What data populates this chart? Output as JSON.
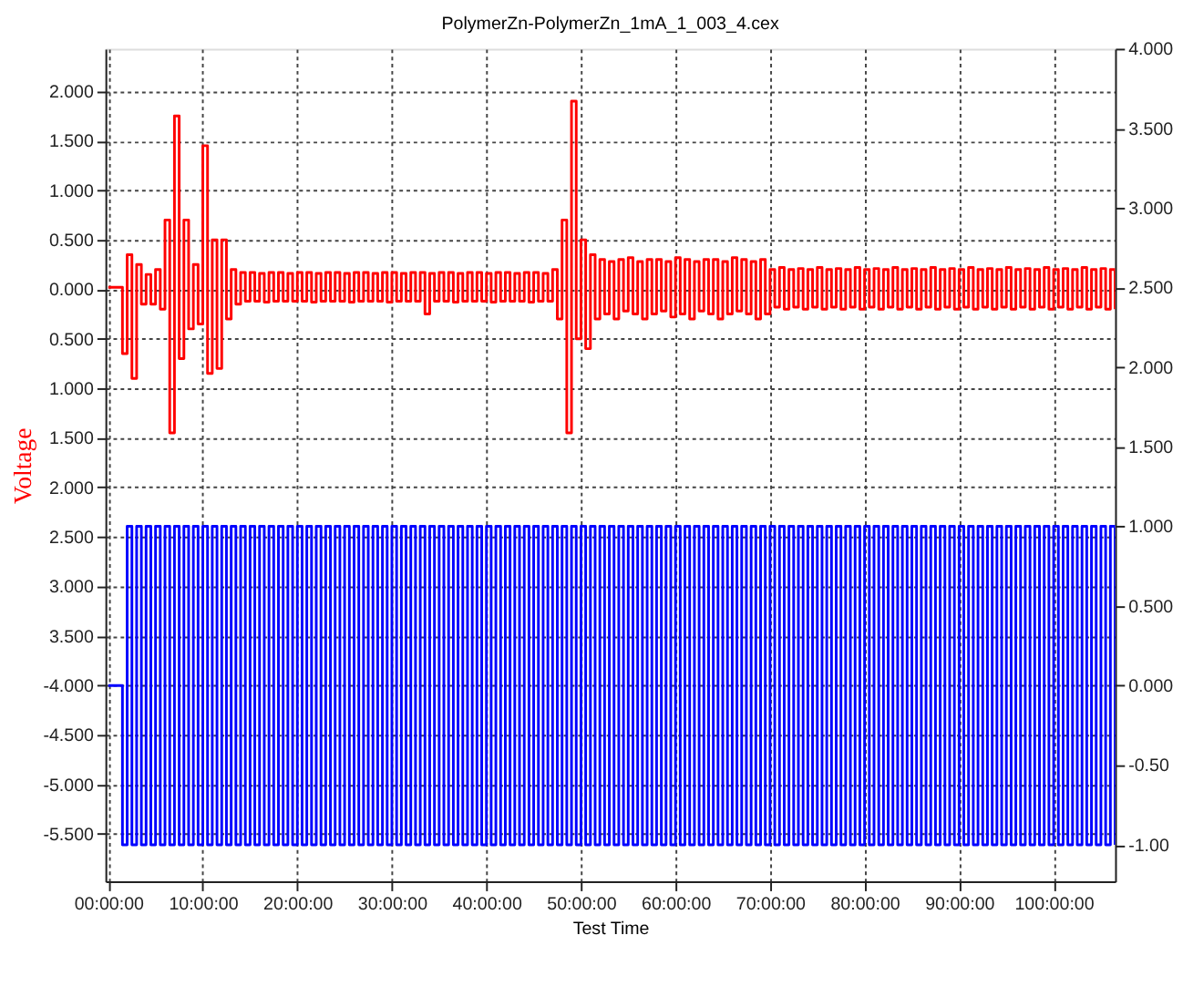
{
  "chart_data": {
    "type": "step",
    "title": "PolymerZn-PolymerZn_1mA_1_003_4.cex",
    "xlabel": "Test Time",
    "ylabel": "Voltage",
    "xlim": [
      -0.3,
      106.5
    ],
    "ylim": [
      -5.98,
      2.43
    ],
    "y2lim": [
      -1.23,
      4.0
    ],
    "xticks": [
      {
        "value": 0,
        "label": "00:00:00"
      },
      {
        "value": 10,
        "label": "10:00:00"
      },
      {
        "value": 20,
        "label": "20:00:00"
      },
      {
        "value": 30,
        "label": "30:00:00"
      },
      {
        "value": 40,
        "label": "40:00:00"
      },
      {
        "value": 50,
        "label": "50:00:00"
      },
      {
        "value": 60,
        "label": "60:00:00"
      },
      {
        "value": 70,
        "label": "70:00:00"
      },
      {
        "value": 80,
        "label": "80:00:00"
      },
      {
        "value": 90,
        "label": "90:00:00"
      },
      {
        "value": 100,
        "label": "100:00:00"
      }
    ],
    "yticks": [
      {
        "value": 2,
        "label": "2.000"
      },
      {
        "value": 1.5,
        "label": "1.500"
      },
      {
        "value": 1,
        "label": "1.000"
      },
      {
        "value": 0.5,
        "label": "0.500"
      },
      {
        "value": 0,
        "label": "0.000"
      },
      {
        "value": -0.5,
        "label": "0.500"
      },
      {
        "value": -1,
        "label": "1.000"
      },
      {
        "value": -1.5,
        "label": "1.500"
      },
      {
        "value": -2,
        "label": "2.000"
      },
      {
        "value": -2.5,
        "label": "2.500"
      },
      {
        "value": -3,
        "label": "3.000"
      },
      {
        "value": -3.5,
        "label": "3.500"
      },
      {
        "value": -4,
        "label": "-4.000"
      },
      {
        "value": -4.5,
        "label": "-4.500"
      },
      {
        "value": -5,
        "label": "-5.000"
      },
      {
        "value": -5.5,
        "label": "-5.500"
      }
    ],
    "y2ticks": [
      {
        "value": 4,
        "label": "4.000"
      },
      {
        "value": 3.5,
        "label": "3.500"
      },
      {
        "value": 3,
        "label": "3.000"
      },
      {
        "value": 2.5,
        "label": "2.500"
      },
      {
        "value": 2,
        "label": "2.000"
      },
      {
        "value": 1.5,
        "label": "1.500"
      },
      {
        "value": 1,
        "label": "1.000"
      },
      {
        "value": 0.5,
        "label": "0.500"
      },
      {
        "value": 0,
        "label": "0.000"
      },
      {
        "value": -0.5,
        "label": "-0.50"
      },
      {
        "value": -1,
        "label": "-1.00"
      }
    ],
    "grid": true,
    "x": [
      0,
      1.5,
      2,
      2.5,
      3,
      3.5,
      4,
      4.5,
      5,
      5.5,
      6,
      6.5,
      7,
      7.5,
      8,
      8.5,
      9,
      9.5,
      10,
      10.5,
      11,
      11.5,
      12,
      12.5,
      13,
      13.5,
      14,
      14.5,
      15,
      15.5,
      16,
      16.5,
      17,
      17.5,
      18,
      18.5,
      19,
      19.5,
      20,
      20.5,
      21,
      21.5,
      22,
      22.5,
      23,
      23.5,
      24,
      24.5,
      25,
      25.5,
      26,
      26.5,
      27,
      27.5,
      28,
      28.5,
      29,
      29.5,
      30,
      30.5,
      31,
      31.5,
      32,
      32.5,
      33,
      33.5,
      34,
      34.5,
      35,
      35.5,
      36,
      36.5,
      37,
      37.5,
      38,
      38.5,
      39,
      39.5,
      40,
      40.5,
      41,
      41.5,
      42,
      42.5,
      43,
      43.5,
      44,
      44.5,
      45,
      45.5,
      46,
      46.5,
      47,
      47.5,
      48,
      48.5,
      49,
      49.5,
      50,
      50.5,
      51,
      51.5,
      52,
      52.5,
      53,
      53.5,
      54,
      54.5,
      55,
      55.5,
      56,
      56.5,
      57,
      57.5,
      58,
      58.5,
      59,
      59.5,
      60,
      60.5,
      61,
      61.5,
      62,
      62.5,
      63,
      63.5,
      64,
      64.5,
      65,
      65.5,
      66,
      66.5,
      67,
      67.5,
      68,
      68.5,
      69,
      69.5,
      70,
      70.5,
      71,
      71.5,
      72,
      72.5,
      73,
      73.5,
      74,
      74.5,
      75,
      75.5,
      76,
      76.5,
      77,
      77.5,
      78,
      78.5,
      79,
      79.5,
      80,
      80.5,
      81,
      81.5,
      82,
      82.5,
      83,
      83.5,
      84,
      84.5,
      85,
      85.5,
      86,
      86.5,
      87,
      87.5,
      88,
      88.5,
      89,
      89.5,
      90,
      90.5,
      91,
      91.5,
      92,
      92.5,
      93,
      93.5,
      94,
      94.5,
      95,
      95.5,
      96,
      96.5,
      97,
      97.5,
      98,
      98.5,
      99,
      99.5,
      100,
      100.5,
      101,
      101.5,
      102,
      102.5,
      103,
      103.5,
      104,
      104.5,
      105,
      105.5,
      106,
      106.5
    ],
    "series": [
      {
        "color": "#ff0000",
        "values": [
          0.02,
          -0.65,
          0.35,
          -0.9,
          0.25,
          -0.15,
          0.15,
          -0.15,
          0.2,
          -0.2,
          0.7,
          -1.45,
          1.75,
          -0.7,
          0.7,
          -0.4,
          0.25,
          -0.35,
          1.45,
          -0.85,
          0.5,
          -0.8,
          0.5,
          -0.3,
          0.2,
          -0.15,
          0.17,
          -0.12,
          0.17,
          -0.12,
          0.16,
          -0.13,
          0.17,
          -0.12,
          0.17,
          -0.12,
          0.16,
          -0.12,
          0.17,
          -0.12,
          0.17,
          -0.13,
          0.16,
          -0.12,
          0.17,
          -0.12,
          0.17,
          -0.12,
          0.16,
          -0.13,
          0.17,
          -0.12,
          0.17,
          -0.12,
          0.16,
          -0.12,
          0.17,
          -0.13,
          0.17,
          -0.12,
          0.16,
          -0.12,
          0.17,
          -0.12,
          0.17,
          -0.25,
          0.16,
          -0.12,
          0.17,
          -0.12,
          0.17,
          -0.13,
          0.16,
          -0.12,
          0.17,
          -0.12,
          0.17,
          -0.12,
          0.16,
          -0.13,
          0.17,
          -0.12,
          0.17,
          -0.12,
          0.16,
          -0.12,
          0.17,
          -0.13,
          0.17,
          -0.12,
          0.16,
          -0.12,
          0.2,
          -0.3,
          0.7,
          -1.45,
          1.9,
          -0.5,
          0.5,
          -0.6,
          0.35,
          -0.3,
          0.3,
          -0.25,
          0.28,
          -0.3,
          0.3,
          -0.22,
          0.32,
          -0.25,
          0.28,
          -0.3,
          0.3,
          -0.25,
          0.3,
          -0.22,
          0.28,
          -0.28,
          0.32,
          -0.25,
          0.3,
          -0.3,
          0.28,
          -0.22,
          0.3,
          -0.25,
          0.3,
          -0.3,
          0.28,
          -0.25,
          0.32,
          -0.22,
          0.3,
          -0.25,
          0.28,
          -0.3,
          0.3,
          -0.25,
          0.2,
          -0.18,
          0.22,
          -0.2,
          0.2,
          -0.18,
          0.21,
          -0.2,
          0.2,
          -0.18,
          0.22,
          -0.2,
          0.2,
          -0.18,
          0.21,
          -0.2,
          0.2,
          -0.18,
          0.22,
          -0.2,
          0.2,
          -0.18,
          0.21,
          -0.2,
          0.2,
          -0.18,
          0.22,
          -0.2,
          0.2,
          -0.18,
          0.21,
          -0.2,
          0.2,
          -0.18,
          0.22,
          -0.2,
          0.2,
          -0.18,
          0.21,
          -0.2,
          0.2,
          -0.18,
          0.22,
          -0.2,
          0.2,
          -0.18,
          0.21,
          -0.2,
          0.2,
          -0.18,
          0.22,
          -0.2,
          0.2,
          -0.18,
          0.21,
          -0.2,
          0.2,
          -0.18,
          0.22,
          -0.2,
          0.2,
          -0.18,
          0.21,
          -0.2,
          0.2,
          -0.18,
          0.22,
          -0.2,
          0.2,
          -0.18,
          0.21,
          -0.2,
          0.2,
          -0.2
        ]
      },
      {
        "color": "#0000ff",
        "axis": "y2",
        "values": [
          0,
          -1,
          1,
          -1,
          1,
          -1,
          1,
          -1,
          1,
          -1,
          1,
          -1,
          1,
          -1,
          1,
          -1,
          1,
          -1,
          1,
          -1,
          1,
          -1,
          1,
          -1,
          1,
          -1,
          1,
          -1,
          1,
          -1,
          1,
          -1,
          1,
          -1,
          1,
          -1,
          1,
          -1,
          1,
          -1,
          1,
          -1,
          1,
          -1,
          1,
          -1,
          1,
          -1,
          1,
          -1,
          1,
          -1,
          1,
          -1,
          1,
          -1,
          1,
          -1,
          1,
          -1,
          1,
          -1,
          1,
          -1,
          1,
          -1,
          1,
          -1,
          1,
          -1,
          1,
          -1,
          1,
          -1,
          1,
          -1,
          1,
          -1,
          1,
          -1,
          1,
          -1,
          1,
          -1,
          1,
          -1,
          1,
          -1,
          1,
          -1,
          1,
          -1,
          1,
          -1,
          1,
          -1,
          1,
          -1,
          1,
          -1,
          1,
          -1,
          1,
          -1,
          1,
          -1,
          1,
          -1,
          1,
          -1,
          1,
          -1,
          1,
          -1,
          1,
          -1,
          1,
          -1,
          1,
          -1,
          1,
          -1,
          1,
          -1,
          1,
          -1,
          1,
          -1,
          1,
          -1,
          1,
          -1,
          1,
          -1,
          1,
          -1,
          1,
          -1,
          1,
          -1,
          1,
          -1,
          1,
          -1,
          1,
          -1,
          1,
          -1,
          1,
          -1,
          1,
          -1,
          1,
          -1,
          1,
          -1,
          1,
          -1,
          1,
          -1,
          1,
          -1,
          1,
          -1,
          1,
          -1,
          1,
          -1,
          1,
          -1,
          1,
          -1,
          1,
          -1,
          1,
          -1,
          1,
          -1,
          1,
          -1,
          1,
          -1,
          1,
          -1,
          1,
          -1,
          1,
          -1,
          1,
          -1,
          1,
          -1,
          1,
          -1,
          1,
          -1,
          1,
          -1,
          1,
          -1,
          1,
          -1,
          1,
          -1,
          1,
          -1,
          1,
          -1,
          1,
          -1,
          1,
          -1
        ]
      }
    ]
  }
}
